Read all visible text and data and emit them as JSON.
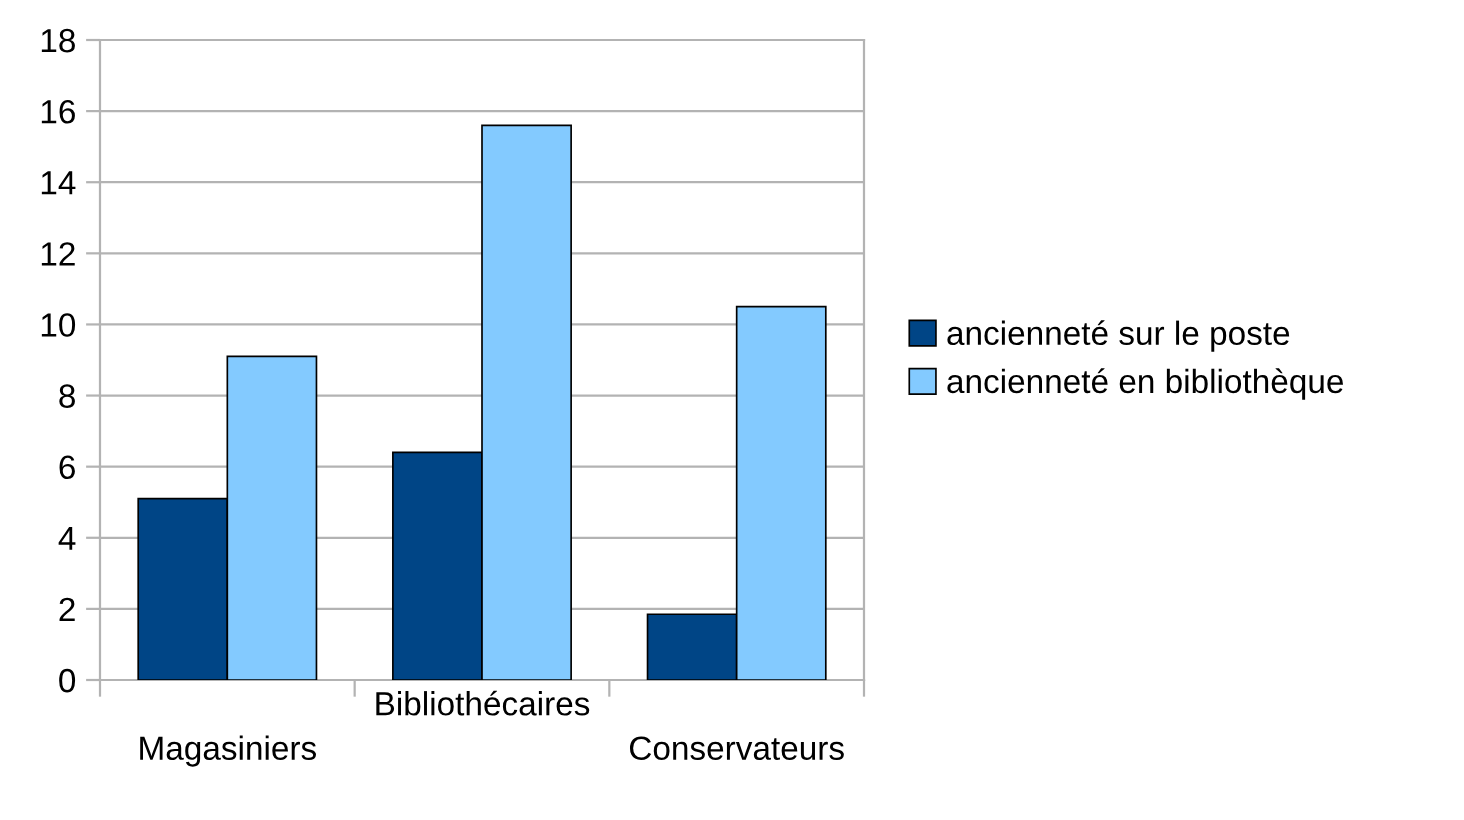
{
  "chart_data": {
    "type": "bar",
    "categories": [
      "Magasiniers",
      "Bibliothécaires",
      "Conservateurs"
    ],
    "series": [
      {
        "name": "ancienneté sur le poste",
        "color": "#004586",
        "values": [
          5.1,
          6.4,
          1.85
        ]
      },
      {
        "name": "ancienneté en bibliothèque",
        "color": "#83caff",
        "values": [
          9.1,
          15.6,
          10.5
        ]
      }
    ],
    "ylim": [
      0,
      18
    ],
    "yticks": [
      0,
      2,
      4,
      6,
      8,
      10,
      12,
      14,
      16,
      18
    ],
    "grid": "y",
    "legend": "right"
  }
}
